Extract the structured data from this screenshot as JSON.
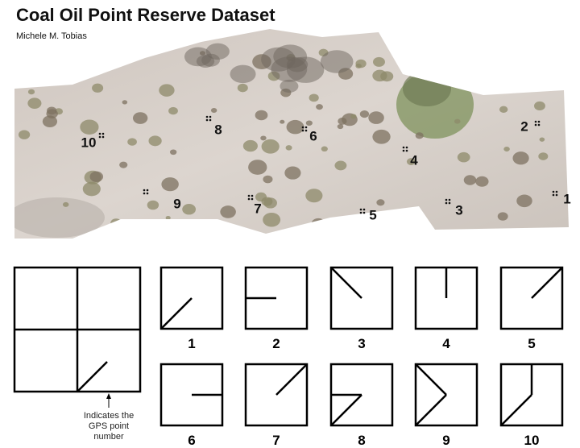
{
  "header": {
    "title": "Coal Oil Point Reserve Dataset",
    "author": "Michele M. Tobias"
  },
  "map": {
    "points": [
      {
        "label": "1"
      },
      {
        "label": "2"
      },
      {
        "label": "3"
      },
      {
        "label": "4"
      },
      {
        "label": "5"
      },
      {
        "label": "6"
      },
      {
        "label": "7"
      },
      {
        "label": "8"
      },
      {
        "label": "9"
      },
      {
        "label": "10"
      }
    ]
  },
  "legend": {
    "note_lines": [
      "Indicates the",
      "GPS point",
      "number"
    ]
  },
  "patterns": [
    {
      "label": "1"
    },
    {
      "label": "2"
    },
    {
      "label": "3"
    },
    {
      "label": "4"
    },
    {
      "label": "5"
    },
    {
      "label": "6"
    },
    {
      "label": "7"
    },
    {
      "label": "8"
    },
    {
      "label": "9"
    },
    {
      "label": "10"
    }
  ]
}
